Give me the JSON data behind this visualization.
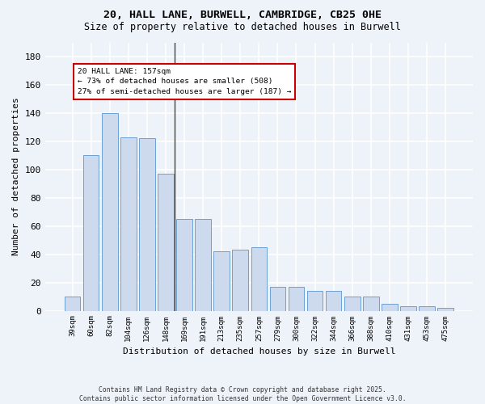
{
  "title_line1": "20, HALL LANE, BURWELL, CAMBRIDGE, CB25 0HE",
  "title_line2": "Size of property relative to detached houses in Burwell",
  "xlabel": "Distribution of detached houses by size in Burwell",
  "ylabel": "Number of detached properties",
  "categories": [
    "39sqm",
    "60sqm",
    "82sqm",
    "104sqm",
    "126sqm",
    "148sqm",
    "169sqm",
    "191sqm",
    "213sqm",
    "235sqm",
    "257sqm",
    "279sqm",
    "300sqm",
    "322sqm",
    "344sqm",
    "366sqm",
    "388sqm",
    "410sqm",
    "431sqm",
    "453sqm",
    "475sqm"
  ],
  "values": [
    10,
    110,
    140,
    123,
    122,
    97,
    65,
    65,
    42,
    43,
    45,
    17,
    17,
    14,
    14,
    10,
    10,
    5,
    3,
    3,
    2
  ],
  "bar_color": "#cdd9ed",
  "bar_edge_color": "#6b9fd4",
  "annotation_title": "20 HALL LANE: 157sqm",
  "annotation_line2": "← 73% of detached houses are smaller (508)",
  "annotation_line3": "27% of semi-detached houses are larger (187) →",
  "annotation_box_color": "#ffffff",
  "annotation_border_color": "#cc0000",
  "vline_color": "#333333",
  "ylim": [
    0,
    190
  ],
  "yticks": [
    0,
    20,
    40,
    60,
    80,
    100,
    120,
    140,
    160,
    180
  ],
  "background_color": "#eef2f9",
  "grid_color": "#ffffff",
  "footer_line1": "Contains HM Land Registry data © Crown copyright and database right 2025.",
  "footer_line2": "Contains public sector information licensed under the Open Government Licence v3.0."
}
